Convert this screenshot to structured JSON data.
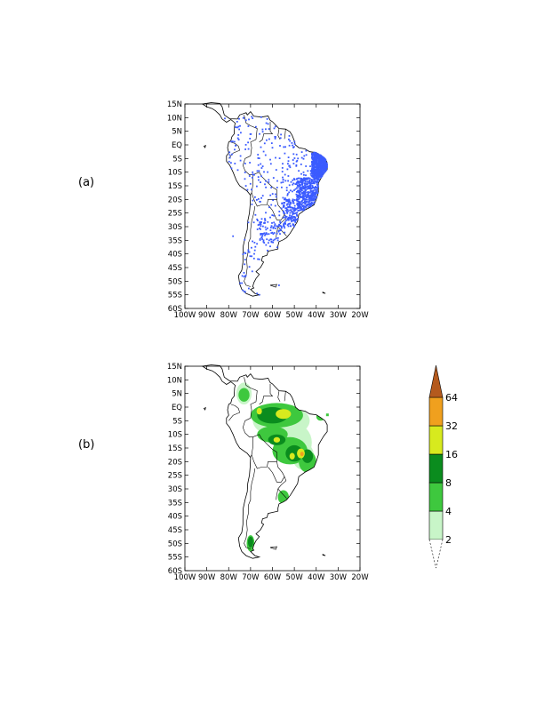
{
  "panels": [
    {
      "label": "(a)",
      "lat_ticks": [
        "15N",
        "10N",
        "5N",
        "EQ",
        "5S",
        "10S",
        "15S",
        "20S",
        "25S",
        "30S",
        "35S",
        "40S",
        "45S",
        "50S",
        "55S",
        "60S"
      ],
      "lon_ticks": [
        "100W",
        "90W",
        "80W",
        "70W",
        "60W",
        "50W",
        "40W",
        "30W",
        "20W"
      ]
    },
    {
      "label": "(b)",
      "lat_ticks": [
        "15N",
        "10N",
        "5N",
        "EQ",
        "5S",
        "10S",
        "15S",
        "20S",
        "25S",
        "30S",
        "35S",
        "40S",
        "45S",
        "50S",
        "55S",
        "60S"
      ],
      "lon_ticks": [
        "100W",
        "90W",
        "80W",
        "70W",
        "60W",
        "50W",
        "40W",
        "30W",
        "20W"
      ]
    }
  ],
  "map_extent": {
    "lon": [
      -100,
      -20
    ],
    "lat": [
      -60,
      15
    ]
  },
  "station_color": "#3b5bff",
  "colorbar": {
    "levels": [
      "2",
      "4",
      "8",
      "16",
      "32",
      "64"
    ],
    "colors": [
      "#c8f5c8",
      "#3ec83e",
      "#0a8c1e",
      "#d7ea1e",
      "#f0a01e",
      "#b45a1e"
    ]
  }
}
